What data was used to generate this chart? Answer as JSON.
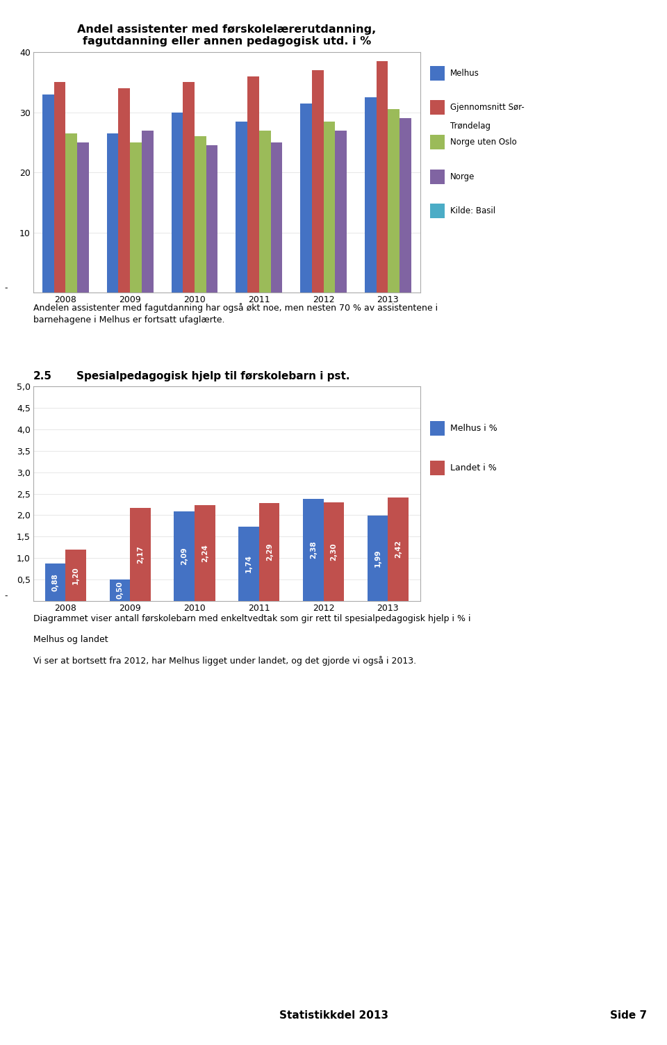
{
  "chart1": {
    "title": "Andel assistenter med førskolelærerutdanning,\nfagutdanning eller annen pedagogisk utd. i %",
    "years": [
      2008,
      2009,
      2010,
      2011,
      2012,
      2013
    ],
    "melhus": [
      33.0,
      26.5,
      30.0,
      28.5,
      31.5,
      32.5
    ],
    "gjennomsnitt": [
      35.0,
      34.0,
      35.0,
      36.0,
      37.0,
      38.5
    ],
    "norge_uten_oslo": [
      26.5,
      25.0,
      26.0,
      27.0,
      28.5,
      30.5
    ],
    "norge": [
      25.0,
      27.0,
      24.5,
      25.0,
      27.0,
      29.0
    ],
    "colors": [
      "#4472C4",
      "#C0504D",
      "#9BBB59",
      "#8064A2",
      "#4BACC6"
    ],
    "legend_labels": [
      "Melhus",
      "Gjennomsnitt Sør-\nTrøndelag",
      "Norge uten Oslo",
      "Norge",
      "Kilde: Basil"
    ],
    "ylim": [
      0,
      40
    ],
    "yticks": [
      10,
      20,
      30,
      40
    ],
    "ytick_labels": [
      "10",
      "20",
      "30",
      "40"
    ]
  },
  "text1": "Andelen assistenter med fagutdanning har også økt noe, men nesten 70 % av assistentene i\nbarnehagene i Melhus er fortsatt ufaglærte.",
  "section_header_num": "2.5",
  "section_header_text": "Spesialpedagogisk hjelp til førskolebarn i pst.",
  "chart2": {
    "years": [
      2008,
      2009,
      2010,
      2011,
      2012,
      2013
    ],
    "melhus": [
      0.88,
      0.5,
      2.09,
      1.74,
      2.38,
      1.99
    ],
    "landet": [
      1.2,
      2.17,
      2.24,
      2.29,
      2.3,
      2.42
    ],
    "colors_melhus": "#4472C4",
    "colors_landet": "#C0504D",
    "legend_labels": [
      "Melhus i %",
      "Landet i %"
    ],
    "ylim": [
      0,
      5.0
    ],
    "yticks": [
      0.5,
      1.0,
      1.5,
      2.0,
      2.5,
      3.0,
      3.5,
      4.0,
      4.5,
      5.0
    ],
    "ytick_labels": [
      "0,5",
      "1,0",
      "1,5",
      "2,0",
      "2,5",
      "3,0",
      "3,5",
      "4,0",
      "4,5",
      "5,0"
    ]
  },
  "text2_line1": "Diagrammet viser antall førskolebarn med enkeltvedtak som gir rett til spesialpedagogisk hjelp i % i",
  "text2_line2": "Melhus og landet",
  "text2_line3": "Vi ser at bortsett fra 2012, har Melhus ligget under landet, og det gjorde vi også i 2013.",
  "footer_left": "Statistikkdel 2013",
  "footer_right": "Side 7",
  "page_bg": "#FFFFFF"
}
